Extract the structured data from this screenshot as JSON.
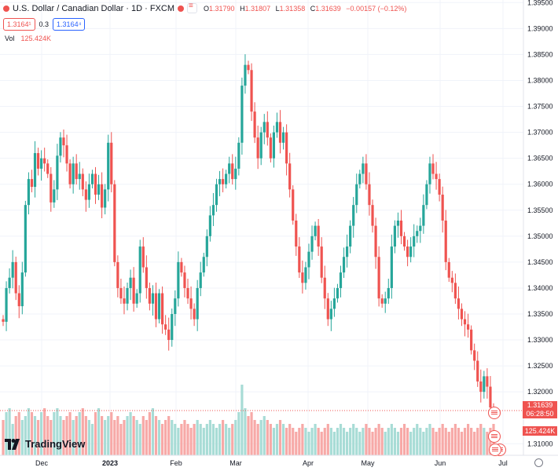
{
  "legend": {
    "symbol": "U.S. Dollar / Canadian Dollar · 1D · FXCM",
    "open_label": "O",
    "open": "1.31790",
    "high_label": "H",
    "high": "1.31807",
    "low_label": "L",
    "low": "1.31358",
    "close_label": "C",
    "close": "1.31639",
    "change": "−0.00157 (−0.12%)",
    "sell_price": "1.3164¹",
    "spread": "0.3",
    "buy_price": "1.3164⁴",
    "vol_label": "Vol",
    "vol_value": "125.424K"
  },
  "price_tag": {
    "price": "1.31639",
    "countdown": "06:28:50"
  },
  "vol_tag": "125.424K",
  "logo": {
    "text": "TradingView",
    "icon": "tradingview-logo-icon"
  },
  "icons": {
    "settings": "gear-icon",
    "events": "canada-flag-icon"
  },
  "colors": {
    "up": "#26a69a",
    "down": "#ef5350",
    "vol_up": "#a8dcd6",
    "vol_down": "#f7a9a7"
  },
  "chart_data": {
    "type": "candlestick",
    "title": "U.S. Dollar / Canadian Dollar · 1D · FXCM",
    "xlabel": "",
    "ylabel": "",
    "x_ticks": [
      "Dec",
      "2023",
      "Feb",
      "Mar",
      "Apr",
      "May",
      "Jun",
      "Jul"
    ],
    "y_ticks": [
      "1.39500",
      "1.39000",
      "1.38500",
      "1.38000",
      "1.37500",
      "1.37000",
      "1.36500",
      "1.36000",
      "1.35500",
      "1.35000",
      "1.34500",
      "1.34000",
      "1.33500",
      "1.33000",
      "1.32500",
      "1.32000",
      "1.31000"
    ],
    "ylim": [
      1.3108,
      1.3955
    ],
    "grid": true,
    "close_series": [
      1.3335,
      1.34,
      1.342,
      1.345,
      1.339,
      1.3365,
      1.343,
      1.356,
      1.361,
      1.3595,
      1.366,
      1.363,
      1.365,
      1.364,
      1.362,
      1.3565,
      1.359,
      1.3655,
      1.369,
      1.3675,
      1.364,
      1.36,
      1.364,
      1.361,
      1.362,
      1.359,
      1.357,
      1.36,
      1.362,
      1.358,
      1.36,
      1.3555,
      1.359,
      1.368,
      1.36,
      1.345,
      1.34,
      1.338,
      1.337,
      1.34,
      1.342,
      1.337,
      1.339,
      1.348,
      1.344,
      1.34,
      1.337,
      1.339,
      1.334,
      1.339,
      1.333,
      1.332,
      1.33,
      1.335,
      1.338,
      1.345,
      1.343,
      1.34,
      1.338,
      1.336,
      1.334,
      1.34,
      1.343,
      1.346,
      1.35,
      1.354,
      1.356,
      1.36,
      1.361,
      1.36,
      1.362,
      1.364,
      1.361,
      1.363,
      1.368,
      1.379,
      1.383,
      1.382,
      1.374,
      1.369,
      1.365,
      1.37,
      1.372,
      1.369,
      1.365,
      1.37,
      1.372,
      1.368,
      1.37,
      1.364,
      1.359,
      1.353,
      1.348,
      1.343,
      1.341,
      1.344,
      1.347,
      1.35,
      1.352,
      1.348,
      1.342,
      1.338,
      1.334,
      1.336,
      1.338,
      1.34,
      1.343,
      1.346,
      1.348,
      1.352,
      1.356,
      1.36,
      1.362,
      1.364,
      1.36,
      1.356,
      1.352,
      1.346,
      1.338,
      1.337,
      1.338,
      1.34,
      1.348,
      1.352,
      1.353,
      1.35,
      1.348,
      1.346,
      1.348,
      1.35,
      1.351,
      1.352,
      1.356,
      1.36,
      1.364,
      1.362,
      1.361,
      1.358,
      1.353,
      1.345,
      1.342,
      1.341,
      1.338,
      1.336,
      1.334,
      1.333,
      1.332,
      1.328,
      1.326,
      1.322,
      1.32,
      1.323,
      1.321,
      1.317,
      1.3164
    ],
    "volume_relative": [
      0.45,
      0.55,
      0.6,
      0.4,
      0.5,
      0.55,
      0.45,
      0.5,
      0.6,
      0.55,
      0.5,
      0.45,
      0.55,
      0.6,
      0.5,
      0.45,
      0.55,
      0.6,
      0.5,
      0.45,
      0.5,
      0.55,
      0.45,
      0.5,
      0.55,
      0.6,
      0.5,
      0.45,
      0.4,
      0.55,
      0.6,
      0.5,
      0.45,
      0.5,
      0.55,
      0.45,
      0.5,
      0.4,
      0.45,
      0.5,
      0.55,
      0.5,
      0.45,
      0.4,
      0.5,
      0.45,
      0.55,
      0.6,
      0.5,
      0.45,
      0.4,
      0.45,
      0.5,
      0.45,
      0.4,
      0.35,
      0.4,
      0.45,
      0.4,
      0.35,
      0.4,
      0.45,
      0.4,
      0.35,
      0.4,
      0.45,
      0.4,
      0.35,
      0.4,
      0.45,
      0.4,
      0.35,
      0.4,
      0.45,
      0.55,
      0.9,
      0.6,
      0.5,
      0.55,
      0.45,
      0.4,
      0.45,
      0.5,
      0.45,
      0.4,
      0.35,
      0.4,
      0.45,
      0.4,
      0.35,
      0.4,
      0.35,
      0.3,
      0.35,
      0.4,
      0.35,
      0.3,
      0.35,
      0.4,
      0.35,
      0.3,
      0.35,
      0.4,
      0.35,
      0.3,
      0.35,
      0.4,
      0.35,
      0.3,
      0.35,
      0.4,
      0.35,
      0.3,
      0.35,
      0.4,
      0.35,
      0.3,
      0.35,
      0.4,
      0.35,
      0.3,
      0.35,
      0.4,
      0.35,
      0.3,
      0.35,
      0.4,
      0.35,
      0.3,
      0.35,
      0.4,
      0.35,
      0.3,
      0.35,
      0.4,
      0.35,
      0.3,
      0.35,
      0.4,
      0.35,
      0.3,
      0.35,
      0.4,
      0.35,
      0.3,
      0.35,
      0.4,
      0.35,
      0.3,
      0.35,
      0.4,
      0.35,
      0.3,
      0.35,
      0.4,
      0.35,
      0.3,
      0.35,
      0.4,
      0.35,
      0.2
    ]
  }
}
